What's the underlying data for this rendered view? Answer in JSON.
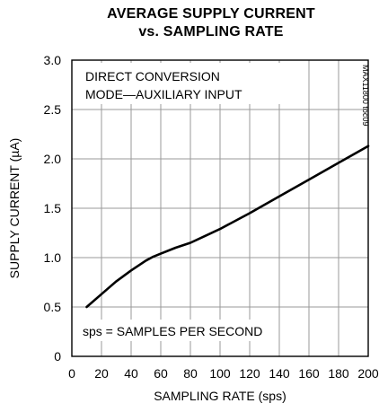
{
  "chart_data": {
    "type": "line",
    "title": "AVERAGE SUPPLY CURRENT",
    "subtitle": "vs. SAMPLING RATE",
    "xlabel": "SAMPLING RATE (sps)",
    "ylabel": "SUPPLY CURRENT (µA)",
    "xlim": [
      0,
      200
    ],
    "ylim": [
      0,
      3.0
    ],
    "xticks": [
      "0",
      "20",
      "40",
      "60",
      "80",
      "100",
      "120",
      "140",
      "160",
      "180",
      "200"
    ],
    "yticks": [
      "0",
      "0.5",
      "1.0",
      "1.5",
      "2.0",
      "2.5",
      "3.0"
    ],
    "grid": true,
    "annotations": [
      "DIRECT CONVERSION",
      "MODE—AUXILIARY INPUT",
      "sps = SAMPLES PER SECOND"
    ],
    "figure_id": "MAX11800 toc09",
    "series": [
      {
        "x": [
          10,
          20,
          30,
          40,
          50,
          55,
          60,
          70,
          80,
          90,
          100,
          120,
          140,
          160,
          180,
          200
        ],
        "y": [
          0.5,
          0.63,
          0.76,
          0.87,
          0.97,
          1.01,
          1.04,
          1.1,
          1.15,
          1.22,
          1.29,
          1.45,
          1.62,
          1.79,
          1.96,
          2.13
        ]
      }
    ],
    "colors": {
      "line": "#000000",
      "grid": "#9a9a9a",
      "frame": "#000000"
    }
  }
}
